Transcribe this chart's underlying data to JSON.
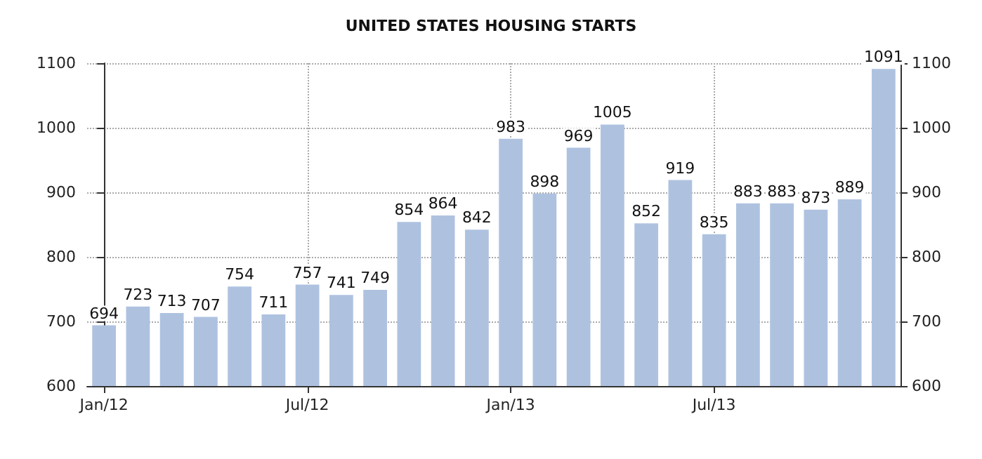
{
  "chart_data": {
    "type": "bar",
    "title": "UNITED STATES HOUSING STARTS",
    "categories": [
      "Jan/12",
      null,
      null,
      null,
      null,
      null,
      "Jul/12",
      null,
      null,
      null,
      null,
      null,
      "Jan/13",
      null,
      null,
      null,
      null,
      null,
      "Jul/13",
      null,
      null,
      null,
      null,
      null
    ],
    "values": [
      694,
      723,
      713,
      707,
      754,
      711,
      757,
      741,
      749,
      854,
      864,
      842,
      983,
      898,
      969,
      1005,
      852,
      919,
      835,
      883,
      883,
      873,
      889,
      1091
    ],
    "color": "#aec2e0",
    "ylim": [
      600,
      1100
    ],
    "yticks": [
      600,
      700,
      800,
      900,
      1000,
      1100
    ],
    "y2lim": [
      600,
      1100
    ],
    "y2ticks": [
      600,
      700,
      800,
      900,
      1000,
      1100
    ],
    "data_labels": true,
    "grid": true
  }
}
